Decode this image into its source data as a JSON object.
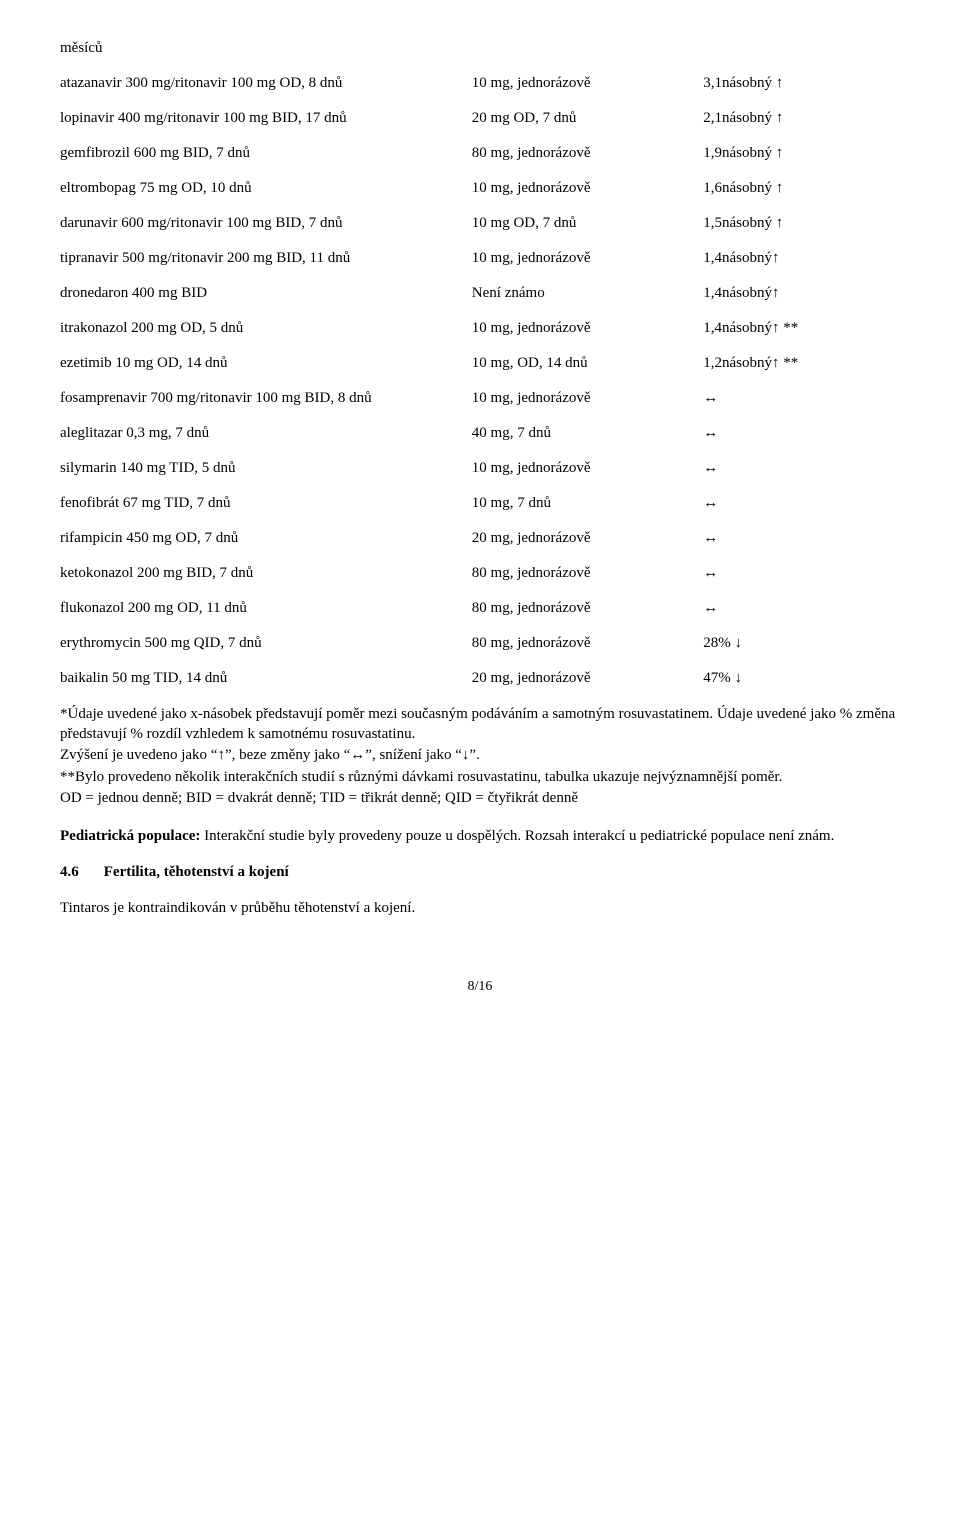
{
  "topword": "měsíců",
  "rows": [
    {
      "c1": "atazanavir 300 mg/ritonavir 100 mg OD, 8 dnů",
      "c2": "10 mg, jednorázově",
      "c3": "3,1násobný ↑"
    },
    {
      "c1": "lopinavir 400 mg/ritonavir 100 mg BID, 17 dnů",
      "c2": "20 mg OD, 7 dnů",
      "c3": "2,1násobný ↑"
    },
    {
      "c1": "gemfibrozil 600 mg BID, 7 dnů",
      "c2": "80 mg, jednorázově",
      "c3": "1,9násobný ↑"
    },
    {
      "c1": "eltrombopag 75 mg OD, 10 dnů",
      "c2": "10 mg, jednorázově",
      "c3": "1,6násobný ↑"
    },
    {
      "c1": "darunavir 600 mg/ritonavir 100 mg BID, 7 dnů",
      "c2": "10 mg OD, 7 dnů",
      "c3": "1,5násobný ↑"
    },
    {
      "c1": "tipranavir 500 mg/ritonavir 200 mg BID, 11 dnů",
      "c2": "10 mg, jednorázově",
      "c3": "1,4násobný↑"
    },
    {
      "c1": "dronedaron 400 mg BID",
      "c2": "Není známo",
      "c3": "1,4násobný↑"
    },
    {
      "c1": "itrakonazol 200 mg OD, 5 dnů",
      "c2": "10 mg, jednorázově",
      "c3": "1,4násobný↑ **"
    },
    {
      "c1": "ezetimib 10 mg OD, 14 dnů",
      "c2": "10 mg, OD, 14 dnů",
      "c3": "1,2násobný↑ **"
    },
    {
      "c1": "fosamprenavir 700 mg/ritonavir 100 mg BID, 8 dnů",
      "c2": "10 mg, jednorázově",
      "c3": "↔"
    },
    {
      "c1": "aleglitazar 0,3 mg, 7 dnů",
      "c2": "40 mg, 7 dnů",
      "c3": "↔"
    },
    {
      "c1": "silymarin 140 mg TID, 5 dnů",
      "c2": "10 mg, jednorázově",
      "c3": "↔"
    },
    {
      "c1": "fenofibrát 67 mg TID, 7 dnů",
      "c2": "10 mg, 7 dnů",
      "c3": "↔"
    },
    {
      "c1": "rifampicin 450 mg OD, 7 dnů",
      "c2": "20 mg, jednorázově",
      "c3": "↔"
    },
    {
      "c1": "ketokonazol 200 mg BID, 7 dnů",
      "c2": "80 mg, jednorázově",
      "c3": "↔"
    },
    {
      "c1": "flukonazol 200 mg OD, 11 dnů",
      "c2": "80 mg, jednorázově",
      "c3": "↔"
    },
    {
      "c1": "erythromycin 500 mg QID, 7 dnů",
      "c2": "80 mg, jednorázově",
      "c3": "28% ↓"
    },
    {
      "c1": "baikalin 50 mg TID, 14 dnů",
      "c2": "20 mg, jednorázově",
      "c3": "47% ↓"
    }
  ],
  "notes": [
    "*Údaje uvedené jako x-násobek představují poměr mezi současným podáváním a samotným rosuvastatinem. Údaje uvedené jako % změna představují % rozdíl vzhledem k samotnému rosuvastatinu.",
    "Zvýšení je uvedeno jako “↑”, beze změny jako “↔”, snížení jako “↓”.",
    "**Bylo provedeno několik interakčních studií s různými dávkami rosuvastatinu, tabulka ukazuje nejvýznamnější poměr.",
    "OD = jednou denně; BID = dvakrát denně; TID = třikrát denně; QID = čtyřikrát denně"
  ],
  "pediatric_label": "Pediatrická populace:",
  "pediatric_text": " Interakční studie byly provedeny pouze u dospělých. Rozsah interakcí u pediatrické populace není znám.",
  "section_num": "4.6",
  "section_title": "Fertilita, těhotenství a kojení",
  "final_para": "Tintaros je kontraindikován v průběhu těhotenství a kojení.",
  "pagenum": "8/16"
}
